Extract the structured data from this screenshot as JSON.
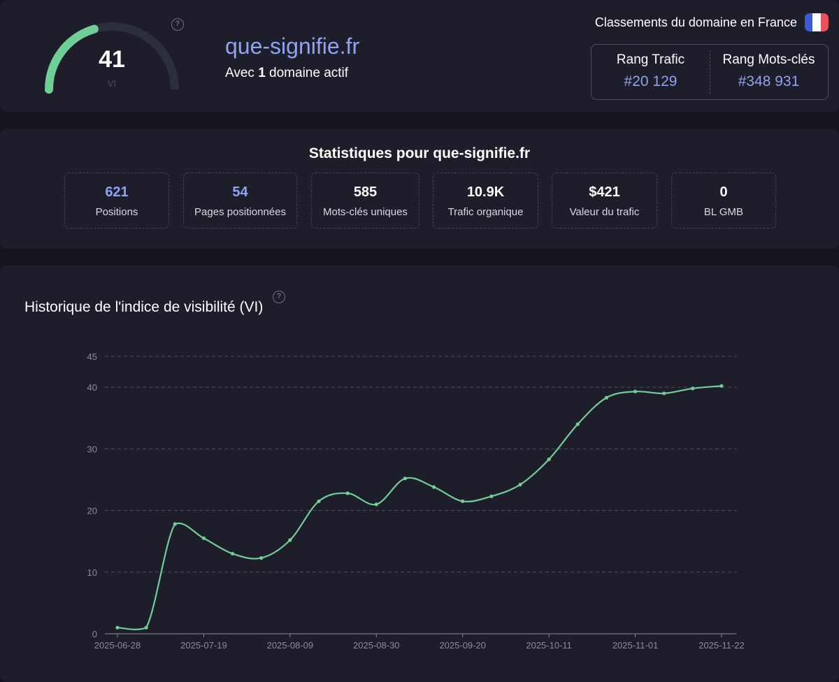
{
  "header": {
    "gauge": {
      "value": "41",
      "unit": "VI",
      "level": 41,
      "max": 100,
      "accent": "#6fcf97"
    },
    "domain": "que-signifie.fr",
    "subtitle_prefix": "Avec ",
    "subtitle_count": "1",
    "subtitle_suffix": " domaine actif",
    "rank_header": "Classements du domaine en France",
    "ranks": [
      {
        "label": "Rang Trafic",
        "value": "#20 129"
      },
      {
        "label": "Rang Mots-clés",
        "value": "#348 931"
      }
    ],
    "flag_colors": [
      "#3b5bd9",
      "#ffffff",
      "#e8505b"
    ]
  },
  "stats": {
    "title": "Statistiques pour que-signifie.fr",
    "items": [
      {
        "value": "621",
        "label": "Positions",
        "color": "blue"
      },
      {
        "value": "54",
        "label": "Pages positionnées",
        "color": "blue"
      },
      {
        "value": "585",
        "label": "Mots-clés uniques",
        "color": "white"
      },
      {
        "value": "10.9K",
        "label": "Trafic organique",
        "color": "white"
      },
      {
        "value": "$421",
        "label": "Valeur du trafic",
        "color": "white"
      },
      {
        "value": "0",
        "label": "BL GMB",
        "color": "white"
      }
    ]
  },
  "chart_data": {
    "type": "line",
    "title": "Historique de l'indice de visibilité (VI)",
    "xlabel": "",
    "ylabel": "",
    "ylim": [
      0,
      45
    ],
    "y_ticks": [
      0,
      10,
      20,
      30,
      40,
      45
    ],
    "x_tick_labels": [
      "2025-06-28",
      "2025-07-19",
      "2025-08-09",
      "2025-08-30",
      "2025-09-20",
      "2025-10-11",
      "2025-11-01",
      "2025-11-22"
    ],
    "grid": true,
    "line_color": "#6fcf97",
    "series": [
      {
        "x": [
          "2025-06-28",
          "2025-07-05",
          "2025-07-12",
          "2025-07-19",
          "2025-07-26",
          "2025-08-02",
          "2025-08-09",
          "2025-08-16",
          "2025-08-23",
          "2025-08-30",
          "2025-09-06",
          "2025-09-13",
          "2025-09-20",
          "2025-09-27",
          "2025-10-04",
          "2025-10-11",
          "2025-10-18",
          "2025-10-25",
          "2025-11-01",
          "2025-11-08",
          "2025-11-15",
          "2025-11-22"
        ],
        "values": [
          1,
          1,
          17.8,
          15.5,
          13,
          12.3,
          15.2,
          21.5,
          22.8,
          21,
          25.2,
          23.8,
          21.5,
          22.3,
          24.2,
          28.3,
          34,
          38.3,
          39.3,
          39,
          39.8,
          40.2
        ]
      }
    ]
  }
}
